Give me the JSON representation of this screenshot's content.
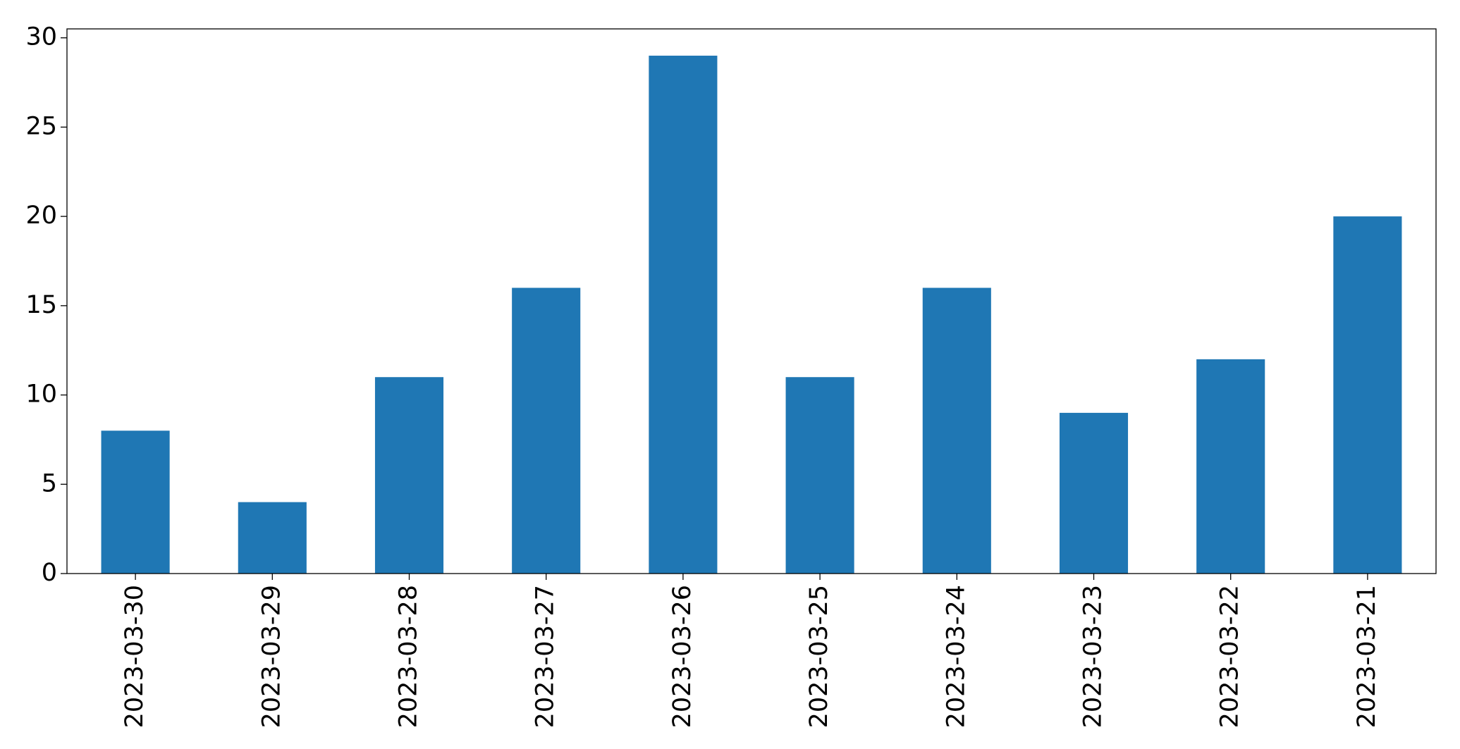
{
  "chart_data": {
    "type": "bar",
    "categories": [
      "2023-03-30",
      "2023-03-29",
      "2023-03-28",
      "2023-03-27",
      "2023-03-26",
      "2023-03-25",
      "2023-03-24",
      "2023-03-23",
      "2023-03-22",
      "2023-03-21"
    ],
    "values": [
      8,
      4,
      11,
      16,
      29,
      11,
      16,
      9,
      12,
      20
    ],
    "color": "#1f77b4",
    "ylim": [
      0,
      30.5
    ],
    "yticks": [
      0,
      5,
      10,
      15,
      20,
      25,
      30
    ],
    "grid": false
  }
}
